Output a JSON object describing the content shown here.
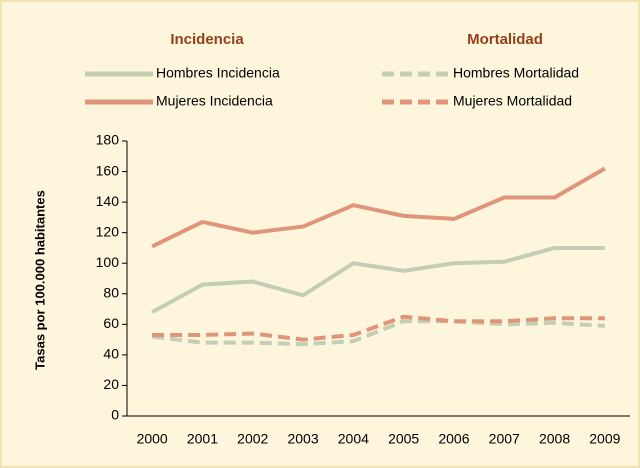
{
  "chart_data": {
    "type": "line",
    "legend_titles": [
      "Incidencia",
      "Mortalidad"
    ],
    "ylabel": "Tasas por 100.000 habitantes",
    "categories": [
      "2000",
      "2001",
      "2002",
      "2003",
      "2004",
      "2005",
      "2006",
      "2007",
      "2008",
      "2009"
    ],
    "series": [
      {
        "name": "Hombres Incidencia",
        "color": "#c3ceb3",
        "dashed": false,
        "values": [
          68,
          86,
          88,
          79,
          100,
          95,
          100,
          101,
          110,
          110
        ]
      },
      {
        "name": "Mujeres Incidencia",
        "color": "#e0957a",
        "dashed": false,
        "values": [
          111,
          127,
          120,
          124,
          138,
          131,
          129,
          143,
          143,
          162
        ]
      },
      {
        "name": "Hombres Mortalidad",
        "color": "#c3ceb3",
        "dashed": true,
        "values": [
          52,
          48,
          48,
          47,
          49,
          62,
          62,
          60,
          61,
          59
        ]
      },
      {
        "name": "Mujeres Mortalidad",
        "color": "#e0957a",
        "dashed": true,
        "values": [
          53,
          53,
          54,
          50,
          53,
          65,
          62,
          62,
          64,
          64
        ]
      }
    ],
    "ylim": [
      0,
      180
    ],
    "yticks": [
      0,
      20,
      40,
      60,
      80,
      100,
      120,
      140,
      160,
      180
    ]
  }
}
